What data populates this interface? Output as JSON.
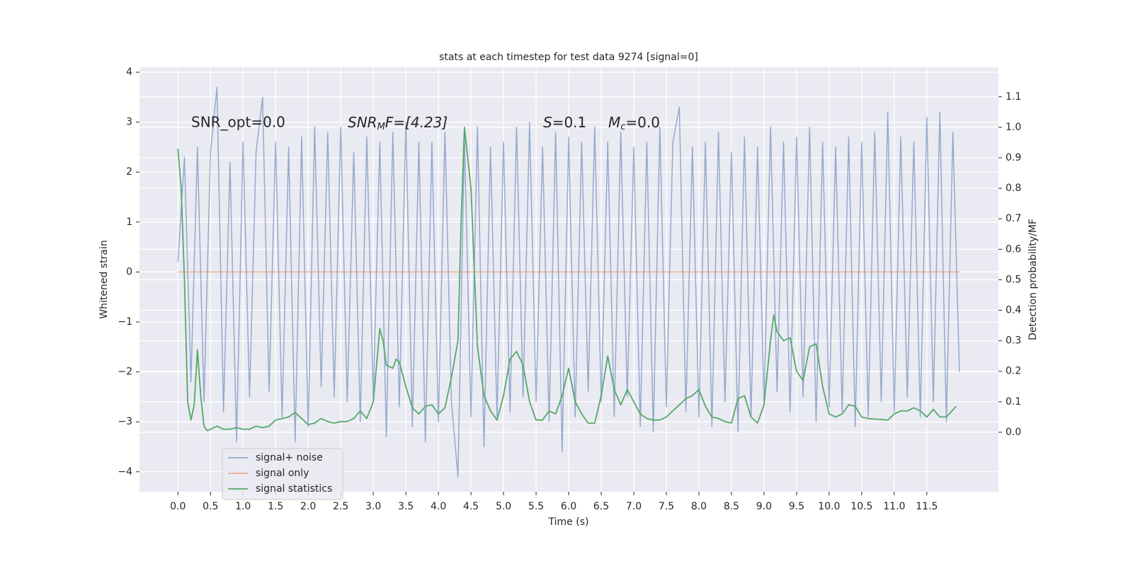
{
  "chart_data": {
    "type": "line",
    "title": "stats at each timestep for test data 9274 [signal=0]",
    "xlabel": "Time (s)",
    "ylabel": "Whitened strain",
    "y2label": "Detection probability/MF",
    "annotations": [
      [
        "SNR_opt=0.0"
      ],
      [
        "SNR",
        "M",
        "F=[4.23]"
      ],
      [
        "S",
        "=0.1"
      ],
      [
        "M",
        "c",
        "=0.0"
      ]
    ],
    "grid": true,
    "legend": "lower left",
    "xlim": [
      -0.59,
      12.6
    ],
    "ylim": [
      -4.4,
      4.1
    ],
    "y2lim": [
      -0.195,
      1.197
    ],
    "xticks": [
      {
        "value": 0,
        "label": "0.0"
      },
      0.5,
      {
        "value": 1,
        "label": "1.0"
      },
      1.5,
      {
        "value": 2,
        "label": "2.0"
      },
      2.5,
      {
        "value": 3,
        "label": "3.0"
      },
      3.5,
      {
        "value": 4,
        "label": "4.0"
      },
      4.5,
      {
        "value": 5,
        "label": "5.0"
      },
      5.5,
      {
        "value": 6,
        "label": "6.0"
      },
      6.5,
      {
        "value": 7,
        "label": "7.0"
      },
      7.5,
      {
        "value": 8,
        "label": "8.0"
      },
      8.5,
      {
        "value": 9,
        "label": "9.0"
      },
      9.5,
      {
        "value": 10,
        "label": "10.0"
      },
      10.5,
      {
        "value": 11,
        "label": "11.0"
      },
      11.5
    ],
    "yticks": [
      {
        "value": -4,
        "label": "−4"
      },
      {
        "value": -3,
        "label": "−3"
      },
      {
        "value": -2,
        "label": "−2"
      },
      {
        "value": -1,
        "label": "−1"
      },
      0,
      1,
      2,
      3,
      4
    ],
    "y2ticks": [
      {
        "value": 0,
        "label": "0.0"
      },
      0.1,
      0.2,
      0.3,
      0.4,
      0.5,
      0.6,
      0.7,
      0.8,
      0.9,
      {
        "value": 1,
        "label": "1.0"
      },
      1.1
    ],
    "series": [
      {
        "name": "signal+ noise",
        "color": "#4c72b0",
        "x": [
          0.0,
          0.1,
          0.2,
          0.3,
          0.4,
          0.5,
          0.6,
          0.7,
          0.8,
          0.9,
          1.0,
          1.1,
          1.2,
          1.3,
          1.4,
          1.5,
          1.6,
          1.7,
          1.8,
          1.9,
          2.0,
          2.1,
          2.2,
          2.3,
          2.4,
          2.5,
          2.6,
          2.7,
          2.8,
          2.9,
          3.0,
          3.1,
          3.2,
          3.3,
          3.4,
          3.5,
          3.6,
          3.7,
          3.8,
          3.9,
          4.0,
          4.1,
          4.2,
          4.3,
          4.4,
          4.5,
          4.6,
          4.7,
          4.8,
          4.9,
          5.0,
          5.1,
          5.2,
          5.3,
          5.4,
          5.5,
          5.6,
          5.7,
          5.8,
          5.9,
          6.0,
          6.1,
          6.2,
          6.3,
          6.4,
          6.5,
          6.6,
          6.7,
          6.8,
          6.9,
          7.0,
          7.1,
          7.2,
          7.3,
          7.4,
          7.5,
          7.6,
          7.7,
          7.8,
          7.9,
          8.0,
          8.1,
          8.2,
          8.3,
          8.4,
          8.5,
          8.6,
          8.7,
          8.8,
          8.9,
          9.0,
          9.1,
          9.2,
          9.3,
          9.4,
          9.5,
          9.6,
          9.7,
          9.8,
          9.9,
          10.0,
          10.1,
          10.2,
          10.3,
          10.4,
          10.5,
          10.6,
          10.7,
          10.8,
          10.9,
          11.0,
          11.1,
          11.2,
          11.3,
          11.4,
          11.5,
          11.6,
          11.7,
          11.8,
          11.9,
          12.0
        ],
        "values": [
          0.2,
          2.3,
          -2.2,
          2.5,
          -2.6,
          2.4,
          3.7,
          -2.8,
          2.2,
          -3.4,
          2.6,
          -2.5,
          2.4,
          3.5,
          -2.4,
          2.6,
          -2.9,
          2.5,
          -3.4,
          2.7,
          -3.1,
          2.9,
          -2.3,
          2.8,
          -2.5,
          2.9,
          -2.6,
          2.4,
          -3.0,
          2.7,
          -2.5,
          2.6,
          -3.3,
          2.8,
          -2.7,
          3.0,
          -3.1,
          2.6,
          -3.4,
          2.6,
          -3.0,
          2.8,
          -2.6,
          -4.1,
          2.7,
          -2.9,
          2.9,
          -3.5,
          2.5,
          -2.9,
          2.6,
          -2.8,
          2.9,
          -2.5,
          3.0,
          -2.6,
          2.5,
          -3.0,
          2.8,
          -3.6,
          2.7,
          -2.9,
          2.6,
          -2.4,
          2.9,
          -2.6,
          2.6,
          -2.9,
          2.8,
          -2.5,
          2.5,
          -3.1,
          2.6,
          -3.2,
          2.9,
          -2.7,
          2.6,
          3.3,
          -2.8,
          2.5,
          -2.9,
          2.6,
          -3.1,
          2.8,
          -2.6,
          2.4,
          -3.2,
          2.7,
          -2.9,
          2.5,
          -2.6,
          2.9,
          -2.4,
          2.6,
          -2.8,
          2.7,
          -2.5,
          2.9,
          -3.0,
          2.6,
          -2.7,
          2.5,
          -2.8,
          2.7,
          -3.1,
          2.6,
          -2.9,
          2.8,
          -2.6,
          3.2,
          -2.8,
          2.7,
          -2.5,
          2.6,
          -2.9,
          3.1,
          -2.6,
          3.2,
          -3.0,
          2.8,
          -2.0
        ]
      },
      {
        "name": "signal only",
        "color": "#dd8452",
        "x": [
          0.0,
          12.0
        ],
        "values": [
          0,
          0
        ]
      },
      {
        "name": "signal statistics",
        "color": "#55a868",
        "axis": "y2",
        "x": [
          0.0,
          0.05,
          0.1,
          0.15,
          0.2,
          0.25,
          0.3,
          0.35,
          0.4,
          0.45,
          0.5,
          0.6,
          0.7,
          0.8,
          0.9,
          1.0,
          1.1,
          1.2,
          1.3,
          1.4,
          1.5,
          1.6,
          1.7,
          1.8,
          1.9,
          2.0,
          2.1,
          2.2,
          2.3,
          2.4,
          2.5,
          2.6,
          2.7,
          2.8,
          2.9,
          3.0,
          3.1,
          3.15,
          3.2,
          3.3,
          3.35,
          3.4,
          3.5,
          3.6,
          3.7,
          3.8,
          3.9,
          4.0,
          4.1,
          4.2,
          4.3,
          4.35,
          4.4,
          4.5,
          4.6,
          4.7,
          4.8,
          4.9,
          5.0,
          5.1,
          5.2,
          5.3,
          5.4,
          5.5,
          5.6,
          5.7,
          5.8,
          5.9,
          6.0,
          6.1,
          6.2,
          6.3,
          6.4,
          6.5,
          6.6,
          6.7,
          6.8,
          6.9,
          7.0,
          7.1,
          7.2,
          7.3,
          7.4,
          7.5,
          7.6,
          7.7,
          7.8,
          7.9,
          8.0,
          8.1,
          8.2,
          8.3,
          8.4,
          8.5,
          8.6,
          8.7,
          8.8,
          8.9,
          9.0,
          9.1,
          9.15,
          9.2,
          9.3,
          9.4,
          9.5,
          9.6,
          9.7,
          9.8,
          9.9,
          10.0,
          10.1,
          10.2,
          10.3,
          10.4,
          10.5,
          10.6,
          10.7,
          10.8,
          10.9,
          11.0,
          11.1,
          11.2,
          11.3,
          11.4,
          11.5,
          11.6,
          11.7,
          11.8,
          11.95
        ],
        "values": [
          0.93,
          0.8,
          0.5,
          0.1,
          0.04,
          0.09,
          0.27,
          0.12,
          0.02,
          0.005,
          0.01,
          0.02,
          0.01,
          0.01,
          0.015,
          0.01,
          0.01,
          0.02,
          0.015,
          0.02,
          0.04,
          0.045,
          0.05,
          0.065,
          0.045,
          0.025,
          0.03,
          0.045,
          0.035,
          0.03,
          0.035,
          0.035,
          0.045,
          0.07,
          0.045,
          0.1,
          0.34,
          0.3,
          0.22,
          0.21,
          0.24,
          0.23,
          0.15,
          0.08,
          0.06,
          0.085,
          0.09,
          0.06,
          0.08,
          0.18,
          0.3,
          0.7,
          1.0,
          0.8,
          0.28,
          0.12,
          0.07,
          0.04,
          0.12,
          0.24,
          0.265,
          0.22,
          0.1,
          0.04,
          0.04,
          0.07,
          0.06,
          0.12,
          0.21,
          0.1,
          0.06,
          0.03,
          0.03,
          0.12,
          0.25,
          0.14,
          0.09,
          0.14,
          0.1,
          0.06,
          0.045,
          0.04,
          0.04,
          0.05,
          0.07,
          0.09,
          0.11,
          0.12,
          0.14,
          0.085,
          0.05,
          0.045,
          0.035,
          0.03,
          0.11,
          0.12,
          0.05,
          0.03,
          0.09,
          0.3,
          0.385,
          0.33,
          0.3,
          0.31,
          0.2,
          0.17,
          0.28,
          0.29,
          0.15,
          0.06,
          0.05,
          0.06,
          0.09,
          0.085,
          0.05,
          0.045,
          0.043,
          0.042,
          0.04,
          0.06,
          0.07,
          0.07,
          0.08,
          0.07,
          0.05,
          0.075,
          0.05,
          0.05,
          0.085
        ]
      }
    ]
  }
}
